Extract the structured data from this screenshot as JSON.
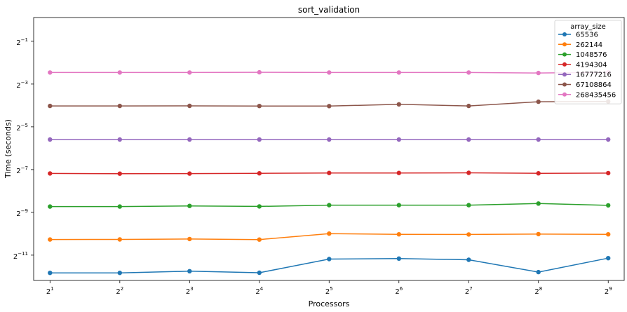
{
  "chart_data": {
    "type": "line",
    "title": "sort_validation",
    "xlabel": "Processors",
    "ylabel": "Time (seconds)",
    "x_scale": "log2",
    "y_scale": "log2",
    "x": [
      2,
      4,
      8,
      16,
      32,
      64,
      128,
      256,
      512
    ],
    "x_tick_labels": [
      {
        "base": "2",
        "exp": "1"
      },
      {
        "base": "2",
        "exp": "2"
      },
      {
        "base": "2",
        "exp": "3"
      },
      {
        "base": "2",
        "exp": "4"
      },
      {
        "base": "2",
        "exp": "5"
      },
      {
        "base": "2",
        "exp": "6"
      },
      {
        "base": "2",
        "exp": "7"
      },
      {
        "base": "2",
        "exp": "8"
      },
      {
        "base": "2",
        "exp": "9"
      }
    ],
    "y_ticks": [
      0.00048828125,
      0.001953125,
      0.0078125,
      0.03125,
      0.125,
      0.5
    ],
    "y_tick_labels": [
      {
        "base": "2",
        "exp": "−11"
      },
      {
        "base": "2",
        "exp": "−9"
      },
      {
        "base": "2",
        "exp": "−7"
      },
      {
        "base": "2",
        "exp": "−5"
      },
      {
        "base": "2",
        "exp": "−3"
      },
      {
        "base": "2",
        "exp": "−1"
      }
    ],
    "xlim": [
      1.7,
      600
    ],
    "ylim": [
      0.000215,
      1.08
    ],
    "grid": false,
    "legend": {
      "title": "array_size",
      "placement": "top-right"
    },
    "series": [
      {
        "name": "65536",
        "color": "#1f77b4",
        "values": [
          0.000275,
          0.000275,
          0.00029,
          0.000276,
          0.00043,
          0.000437,
          0.00042,
          0.000282,
          0.000443
        ]
      },
      {
        "name": "262144",
        "color": "#ff7f0e",
        "values": [
          0.00081,
          0.000813,
          0.000824,
          0.000808,
          0.00098,
          0.00096,
          0.000955,
          0.000965,
          0.00096
        ]
      },
      {
        "name": "1048576",
        "color": "#2ca02c",
        "values": [
          0.00236,
          0.00236,
          0.00241,
          0.00237,
          0.00247,
          0.00247,
          0.00247,
          0.0026,
          0.00245
        ]
      },
      {
        "name": "4194304",
        "color": "#d62728",
        "values": [
          0.0069,
          0.00685,
          0.00686,
          0.00692,
          0.007,
          0.007,
          0.00703,
          0.00692,
          0.00697
        ]
      },
      {
        "name": "16777216",
        "color": "#9467bd",
        "values": [
          0.0207,
          0.0207,
          0.0207,
          0.0207,
          0.0207,
          0.0207,
          0.0207,
          0.0207,
          0.0207
        ]
      },
      {
        "name": "67108864",
        "color": "#8c564b",
        "values": [
          0.0615,
          0.0615,
          0.0616,
          0.0614,
          0.0612,
          0.0648,
          0.0615,
          0.0705,
          0.071
        ]
      },
      {
        "name": "268435456",
        "color": "#e377c2",
        "values": [
          0.182,
          0.182,
          0.182,
          0.183,
          0.182,
          0.182,
          0.182,
          0.179,
          0.183
        ]
      }
    ]
  }
}
